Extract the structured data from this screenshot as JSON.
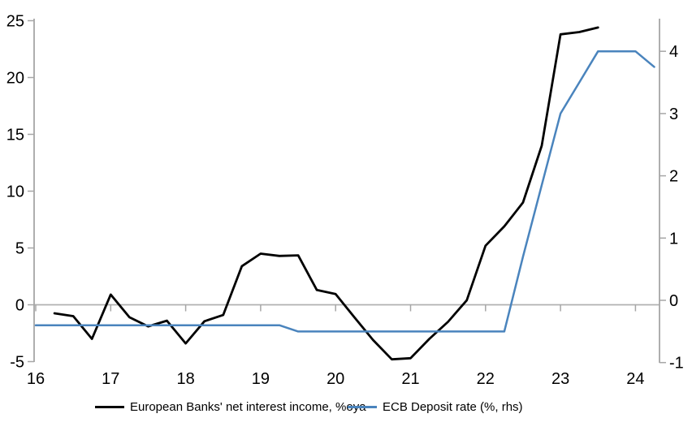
{
  "colors": {
    "black_line": "#000000",
    "blue_line": "#4a84bd",
    "axis": "#a6a6a6",
    "gridline": "#b0b0b0",
    "label": "#000000"
  },
  "chart_data": {
    "type": "line",
    "title": "",
    "xlabel": "",
    "ylabel_left": "",
    "ylabel_right": "",
    "grid": "zero-line-only",
    "legend_position": "bottom",
    "x_axis": {
      "ticks": [
        16,
        17,
        18,
        19,
        20,
        21,
        22,
        23,
        24
      ],
      "range": [
        16,
        24.3
      ]
    },
    "left_axis": {
      "ticks": [
        25,
        20,
        15,
        10,
        5,
        0,
        -5
      ],
      "range": [
        -5,
        25
      ]
    },
    "right_axis": {
      "ticks": [
        4,
        3,
        2,
        1,
        0,
        -1
      ],
      "range": [
        -1,
        4.55
      ]
    },
    "series": [
      {
        "name": "European Banks' net interest income, %oya",
        "axis": "left",
        "color": "#000000",
        "width": 2.8,
        "x": [
          16.25,
          16.5,
          16.75,
          17.0,
          17.25,
          17.5,
          17.75,
          18.0,
          18.25,
          18.5,
          18.75,
          19.0,
          19.25,
          19.5,
          19.75,
          20.0,
          20.25,
          20.5,
          20.75,
          21.0,
          21.25,
          21.5,
          21.75,
          22.0,
          22.25,
          22.5,
          22.75,
          23.0,
          23.25,
          23.5
        ],
        "values": [
          -0.75,
          -1.0,
          -3.0,
          0.9,
          -1.1,
          -1.9,
          -1.4,
          -3.4,
          -1.45,
          -0.9,
          3.4,
          4.5,
          4.3,
          4.35,
          1.3,
          0.95,
          -1.1,
          -3.1,
          -4.8,
          -4.7,
          -3.0,
          -1.5,
          0.4,
          5.2,
          6.9,
          9.0,
          14.0,
          23.8,
          24.0,
          24.4
        ]
      },
      {
        "name": "ECB Deposit rate (%, rhs)",
        "axis": "right",
        "color": "#4a84bd",
        "width": 2.5,
        "x": [
          16.0,
          16.25,
          16.5,
          16.75,
          17.0,
          17.25,
          17.5,
          17.75,
          18.0,
          18.25,
          18.5,
          18.75,
          19.0,
          19.25,
          19.5,
          19.75,
          20.0,
          20.25,
          20.5,
          20.75,
          21.0,
          21.25,
          21.5,
          21.75,
          22.0,
          22.25,
          22.5,
          22.75,
          23.0,
          23.25,
          23.5,
          23.75,
          24.0,
          24.25
        ],
        "values": [
          -0.4,
          -0.4,
          -0.4,
          -0.4,
          -0.4,
          -0.4,
          -0.4,
          -0.4,
          -0.4,
          -0.4,
          -0.4,
          -0.4,
          -0.4,
          -0.4,
          -0.5,
          -0.5,
          -0.5,
          -0.5,
          -0.5,
          -0.5,
          -0.5,
          -0.5,
          -0.5,
          -0.5,
          -0.5,
          -0.5,
          0.7,
          1.85,
          3.0,
          3.5,
          4.0,
          4.0,
          4.0,
          3.75
        ]
      }
    ]
  },
  "legend": {
    "item1": "European Banks' net interest income, %oya",
    "item2": "ECB Deposit rate (%, rhs)"
  }
}
